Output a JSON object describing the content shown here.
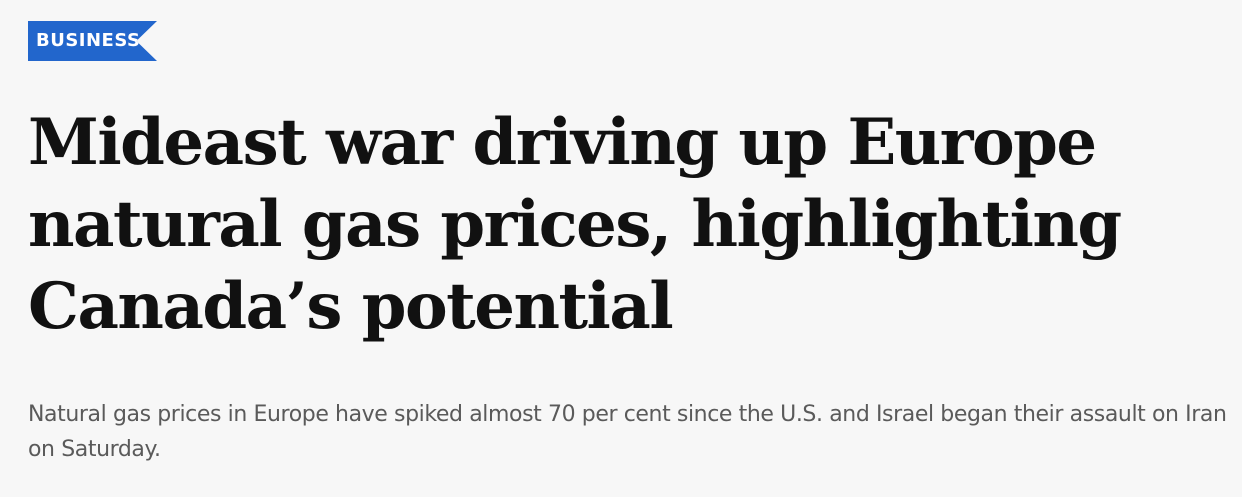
{
  "section": {
    "label": "BUSINESS",
    "color": "#2266cc"
  },
  "article": {
    "headline": "Mideast war driving up Europe natural gas prices, highlighting Canada’s potential",
    "dek": "Natural gas prices in Europe have spiked almost 70 per cent since the U.S. and Israel began their assault on Iran on Saturday."
  }
}
